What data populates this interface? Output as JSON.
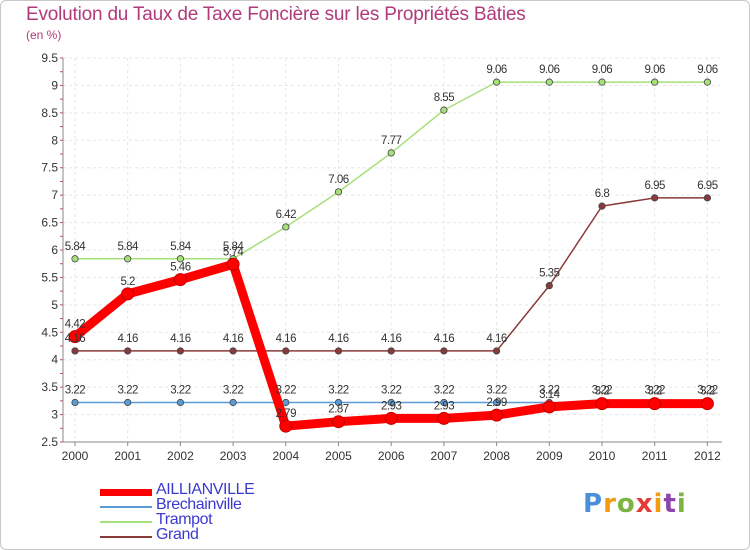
{
  "chart_data": {
    "type": "line",
    "title": "Evolution du Taux de Taxe Foncière sur les Propriétés Bâties",
    "subtitle": "(en %)",
    "xlabel": "",
    "ylabel": "",
    "x": [
      "2000",
      "2001",
      "2002",
      "2003",
      "2004",
      "2005",
      "2006",
      "2007",
      "2008",
      "2009",
      "2010",
      "2011",
      "2012"
    ],
    "ylim": [
      2.5,
      9.5
    ],
    "yticks": [
      "2.5",
      "3",
      "3.5",
      "4",
      "4.5",
      "5",
      "5.5",
      "6",
      "6.5",
      "7",
      "7.5",
      "8",
      "8.5",
      "9",
      "9.5"
    ],
    "grid": true,
    "legend_position": "bottom-left",
    "series": [
      {
        "name": "AILLIANVILLE",
        "color": "#ff0000",
        "values": [
          4.42,
          5.2,
          5.46,
          5.74,
          2.79,
          2.87,
          2.93,
          2.93,
          2.99,
          3.14,
          3.2,
          3.2,
          3.2
        ],
        "labels": [
          "4.42",
          "5.2",
          "5.46",
          "5.74",
          "2.79",
          "2.87",
          "2.93",
          "2.93",
          "2.99",
          "3.14",
          "3.2",
          "3.2",
          "3.2"
        ]
      },
      {
        "name": "Brechainville",
        "color": "#5b9bd5",
        "values": [
          3.22,
          3.22,
          3.22,
          3.22,
          3.22,
          3.22,
          3.22,
          3.22,
          3.22,
          3.22,
          3.22,
          3.22,
          3.22
        ],
        "labels": [
          "3.22",
          "3.22",
          "3.22",
          "3.22",
          "3.22",
          "3.22",
          "3.22",
          "3.22",
          "3.22",
          "3.22",
          "3.22",
          "3.22",
          "3.22"
        ]
      },
      {
        "name": "Trampot",
        "color": "#a6e07a",
        "values": [
          5.84,
          5.84,
          5.84,
          5.84,
          6.42,
          7.06,
          7.77,
          8.55,
          9.06,
          9.06,
          9.06,
          9.06,
          9.06
        ],
        "labels": [
          "5.84",
          "5.84",
          "5.84",
          "5.84",
          "6.42",
          "7.06",
          "7.77",
          "8.55",
          "9.06",
          "9.06",
          "9.06",
          "9.06",
          "9.06"
        ]
      },
      {
        "name": "Grand",
        "color": "#8b3a3a",
        "values": [
          4.16,
          4.16,
          4.16,
          4.16,
          4.16,
          4.16,
          4.16,
          4.16,
          4.16,
          5.35,
          6.8,
          6.95,
          6.95
        ],
        "labels": [
          "4.16",
          "4.16",
          "4.16",
          "4.16",
          "4.16",
          "4.16",
          "4.16",
          "4.16",
          "4.16",
          "5.35",
          "6.8",
          "6.95",
          "6.95"
        ]
      }
    ]
  },
  "logo": {
    "letters": [
      "P",
      "r",
      "o",
      "x",
      "i",
      "t",
      "i"
    ],
    "colors": [
      "#4a90d9",
      "#f39c12",
      "#7cb342",
      "#e53935",
      "#f39c12",
      "#8e44ad",
      "#7cb342"
    ]
  }
}
